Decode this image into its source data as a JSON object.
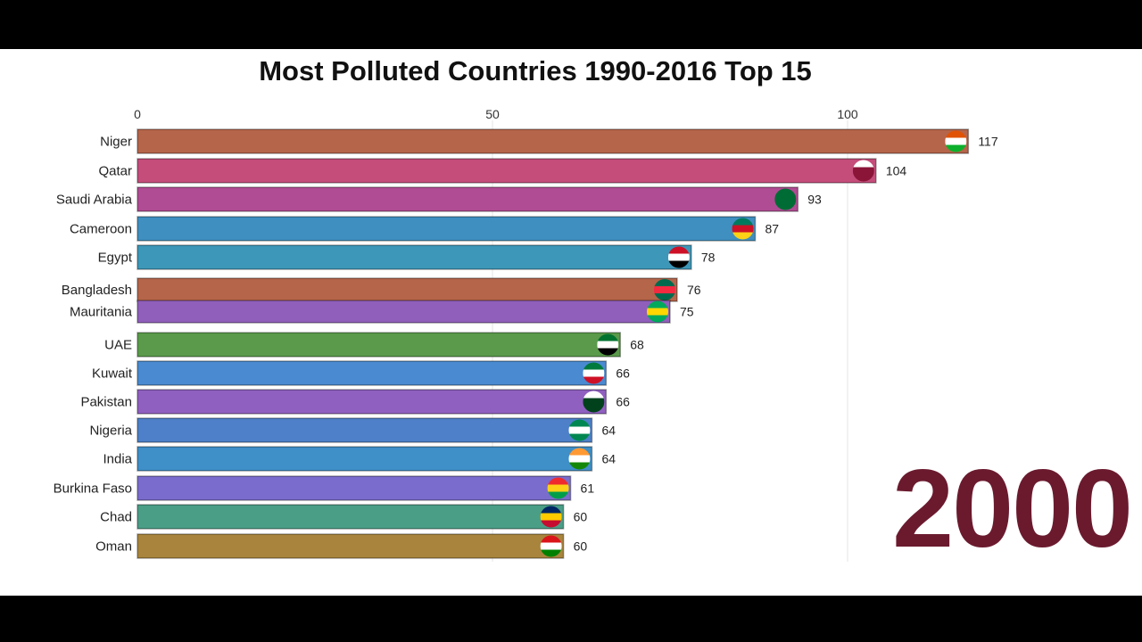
{
  "chart_data": {
    "type": "bar",
    "orientation": "horizontal",
    "title": "Most Polluted Countries 1990-2016 Top 15",
    "year_label": "2000",
    "xlim": [
      0,
      117
    ],
    "xticks": [
      0,
      50,
      100
    ],
    "grid": true,
    "categories": [
      "Niger",
      "Qatar",
      "Saudi Arabia",
      "Cameroon",
      "Egypt",
      "Bangladesh",
      "Mauritania",
      "UAE",
      "Kuwait",
      "Pakistan",
      "Nigeria",
      "India",
      "Burkina Faso",
      "Chad",
      "Oman"
    ],
    "values": [
      117,
      104,
      93,
      87,
      78,
      76,
      75,
      68,
      66,
      66,
      64,
      64,
      61,
      60,
      60
    ],
    "value_labels": [
      "117",
      "104",
      "93",
      "87",
      "78",
      "76",
      "75",
      "68",
      "66",
      "66",
      "64",
      "64",
      "61",
      "60",
      "60"
    ],
    "colors": [
      "#b5654a",
      "#c44d7a",
      "#b04c93",
      "#3f8fc0",
      "#3d97b8",
      "#b5654a",
      "#8f5fbb",
      "#5a9a4a",
      "#4a8ad0",
      "#9060c0",
      "#4d80c8",
      "#3f8fc8",
      "#7a6ccc",
      "#4a9e86",
      "#a8843c"
    ],
    "flags": [
      [
        "#e05206",
        "#ffffff",
        "#0db02b"
      ],
      [
        "#ffffff",
        "#8a1538",
        "#8a1538"
      ],
      [
        "#006c35",
        "#006c35",
        "#006c35"
      ],
      [
        "#007a5e",
        "#ce1126",
        "#fcd116"
      ],
      [
        "#ce1126",
        "#ffffff",
        "#000000"
      ],
      [
        "#006a4e",
        "#f42a41",
        "#006a4e"
      ],
      [
        "#00a95c",
        "#ffd700",
        "#00a95c"
      ],
      [
        "#00732f",
        "#ffffff",
        "#000000"
      ],
      [
        "#007a3d",
        "#ffffff",
        "#ce1126"
      ],
      [
        "#ffffff",
        "#01411c",
        "#01411c"
      ],
      [
        "#008751",
        "#ffffff",
        "#008751"
      ],
      [
        "#ff9933",
        "#ffffff",
        "#138808"
      ],
      [
        "#ef2b2d",
        "#fcd116",
        "#009e49"
      ],
      [
        "#002664",
        "#fecb00",
        "#c60c30"
      ],
      [
        "#db161b",
        "#ffffff",
        "#008000"
      ]
    ]
  }
}
